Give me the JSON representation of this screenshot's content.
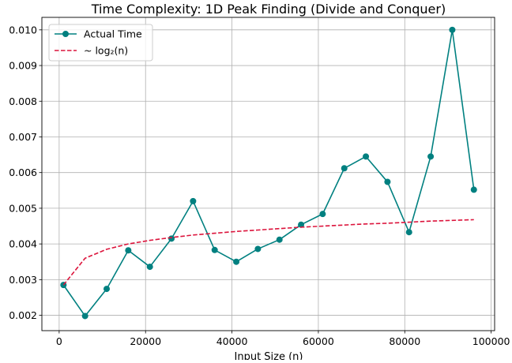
{
  "chart_data": {
    "type": "line",
    "title": "Time Complexity: 1D Peak Finding (Divide and Conquer)",
    "xlabel": "Input Size (n)",
    "ylabel": "",
    "xlim": [
      -4000,
      100800
    ],
    "ylim": [
      0.00157,
      0.01035
    ],
    "grid": true,
    "legend_position": "upper-left",
    "x_ticks": [
      0,
      20000,
      40000,
      60000,
      80000,
      100000
    ],
    "x_tick_labels": [
      "0",
      "20000",
      "40000",
      "60000",
      "80000",
      "100000"
    ],
    "y_ticks": [
      0.002,
      0.003,
      0.004,
      0.005,
      0.006,
      0.007,
      0.008,
      0.009,
      0.01
    ],
    "y_tick_labels": [
      "0.002",
      "0.003",
      "0.004",
      "0.005",
      "0.006",
      "0.007",
      "0.008",
      "0.009",
      "0.010"
    ],
    "x": [
      1000,
      6000,
      11000,
      16000,
      21000,
      26000,
      31000,
      36000,
      41000,
      46000,
      51000,
      56000,
      61000,
      66000,
      71000,
      76000,
      81000,
      86000,
      91000,
      96000
    ],
    "series": [
      {
        "name": "Actual Time",
        "color": "#008080",
        "style": "solid",
        "marker": "circle",
        "values": [
          0.00285,
          0.00198,
          0.00274,
          0.00382,
          0.00336,
          0.00415,
          0.0052,
          0.00383,
          0.0035,
          0.00386,
          0.00412,
          0.00454,
          0.00484,
          0.00612,
          0.00645,
          0.00574,
          0.00433,
          0.00645,
          0.01,
          0.00552
        ]
      },
      {
        "name": "~ log₂(n)",
        "color": "#dc143c",
        "style": "dashed",
        "marker": "none",
        "values": [
          0.00285,
          0.0036,
          0.00385,
          0.004,
          0.0041,
          0.00418,
          0.00425,
          0.0043,
          0.00435,
          0.00439,
          0.00443,
          0.00447,
          0.0045,
          0.00453,
          0.00456,
          0.00458,
          0.00461,
          0.00464,
          0.00466,
          0.00468
        ]
      }
    ]
  }
}
